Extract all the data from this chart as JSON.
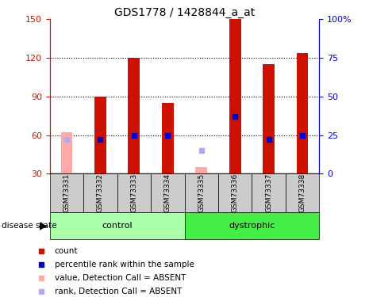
{
  "title": "GDS1778 / 1428844_a_at",
  "samples": [
    "GSM73331",
    "GSM73332",
    "GSM73333",
    "GSM73334",
    "GSM73335",
    "GSM73336",
    "GSM73337",
    "GSM73338"
  ],
  "count_values": [
    62,
    90,
    120,
    85,
    35,
    150,
    115,
    124
  ],
  "rank_values": [
    22,
    22,
    25,
    25,
    15,
    37,
    22,
    25
  ],
  "absent_flags": [
    true,
    false,
    false,
    false,
    true,
    false,
    false,
    false
  ],
  "control_count": 4,
  "dystrophic_count": 4,
  "ylim_left": [
    30,
    150
  ],
  "ylim_right": [
    0,
    100
  ],
  "yticks_left": [
    30,
    60,
    90,
    120,
    150
  ],
  "yticks_right": [
    0,
    25,
    50,
    75,
    100
  ],
  "bar_color_normal": "#cc1100",
  "bar_color_absent": "#ffaaaa",
  "rank_color_normal": "#0000cc",
  "rank_color_absent": "#aaaaff",
  "control_bg_light": "#bbffbb",
  "control_bg": "#aaffaa",
  "dystrophic_bg": "#44ee44",
  "sample_bg": "#cccccc",
  "left_axis_color": "#cc1100",
  "right_axis_color": "#0000cc",
  "bar_width": 0.35,
  "rank_marker_size": 5
}
